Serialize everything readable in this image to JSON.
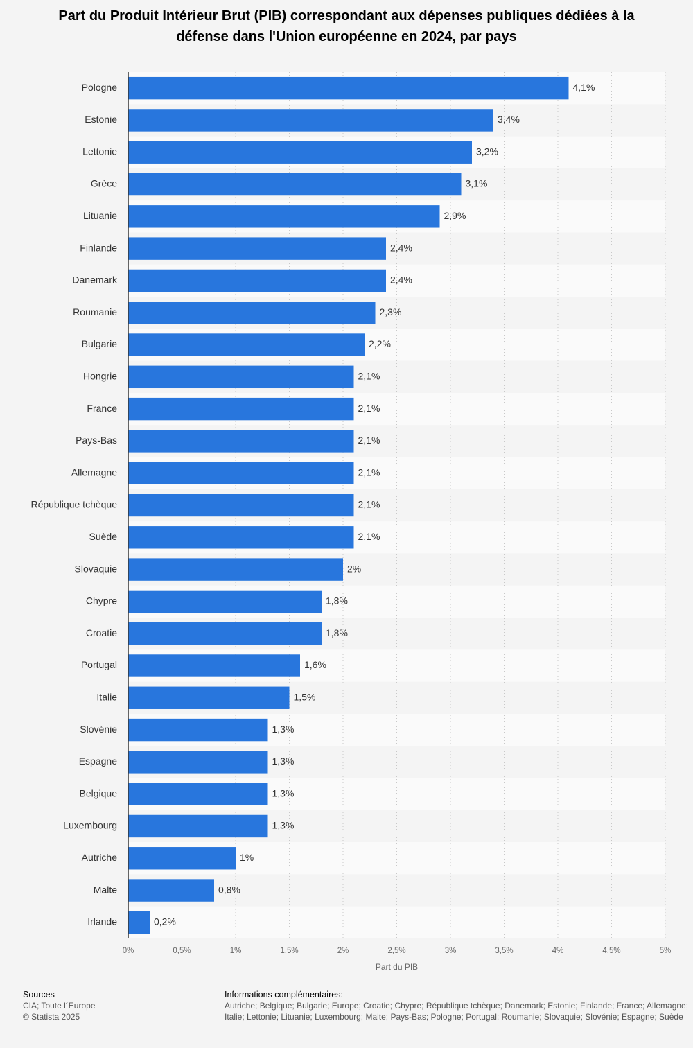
{
  "chart_data": {
    "type": "bar",
    "orientation": "horizontal",
    "title": "Part du Produit Intérieur Brut (PIB) correspondant aux dépenses publiques dédiées à la défense dans l'Union européenne en 2024, par pays",
    "categories": [
      "Pologne",
      "Estonie",
      "Lettonie",
      "Grèce",
      "Lituanie",
      "Finlande",
      "Danemark",
      "Roumanie",
      "Bulgarie",
      "Hongrie",
      "France",
      "Pays-Bas",
      "Allemagne",
      "République tchèque",
      "Suède",
      "Slovaquie",
      "Chypre",
      "Croatie",
      "Portugal",
      "Italie",
      "Slovénie",
      "Espagne",
      "Belgique",
      "Luxembourg",
      "Autriche",
      "Malte",
      "Irlande"
    ],
    "values": [
      4.1,
      3.4,
      3.2,
      3.1,
      2.9,
      2.4,
      2.4,
      2.3,
      2.2,
      2.1,
      2.1,
      2.1,
      2.1,
      2.1,
      2.1,
      2,
      1.8,
      1.8,
      1.6,
      1.5,
      1.3,
      1.3,
      1.3,
      1.3,
      1,
      0.8,
      0.2
    ],
    "value_labels": [
      "4,1%",
      "3,4%",
      "3,2%",
      "3,1%",
      "2,9%",
      "2,4%",
      "2,4%",
      "2,3%",
      "2,2%",
      "2,1%",
      "2,1%",
      "2,1%",
      "2,1%",
      "2,1%",
      "2,1%",
      "2%",
      "1,8%",
      "1,8%",
      "1,6%",
      "1,5%",
      "1,3%",
      "1,3%",
      "1,3%",
      "1,3%",
      "1%",
      "0,8%",
      "0,2%"
    ],
    "color": "#2876dd",
    "xlabel": "Part du PIB",
    "xlim": [
      0,
      5
    ],
    "xticks": [
      {
        "value": 0,
        "label": "0%"
      },
      {
        "value": 0.5,
        "label": "0,5%"
      },
      {
        "value": 1,
        "label": "1%"
      },
      {
        "value": 1.5,
        "label": "1,5%"
      },
      {
        "value": 2,
        "label": "2%"
      },
      {
        "value": 2.5,
        "label": "2,5%"
      },
      {
        "value": 3,
        "label": "3%"
      },
      {
        "value": 3.5,
        "label": "3,5%"
      },
      {
        "value": 4,
        "label": "4%"
      },
      {
        "value": 4.5,
        "label": "4,5%"
      },
      {
        "value": 5,
        "label": "5%"
      }
    ],
    "grid": true
  },
  "footer": {
    "sources_title": "Sources",
    "sources": [
      "CIA; Toute l´Europe",
      "© Statista 2025"
    ],
    "info_title": "Informations complémentaires:",
    "info": [
      "Autriche; Belgique; Bulgarie; Europe; Croatie; Chypre; République tchèque; Danemark; Estonie; Finlande; France; Allemagne;",
      "Italie; Lettonie; Lituanie; Luxembourg; Malte; Pays-Bas; Pologne; Portugal; Roumanie; Slovaquie; Slovénie; Espagne; Suède"
    ]
  }
}
